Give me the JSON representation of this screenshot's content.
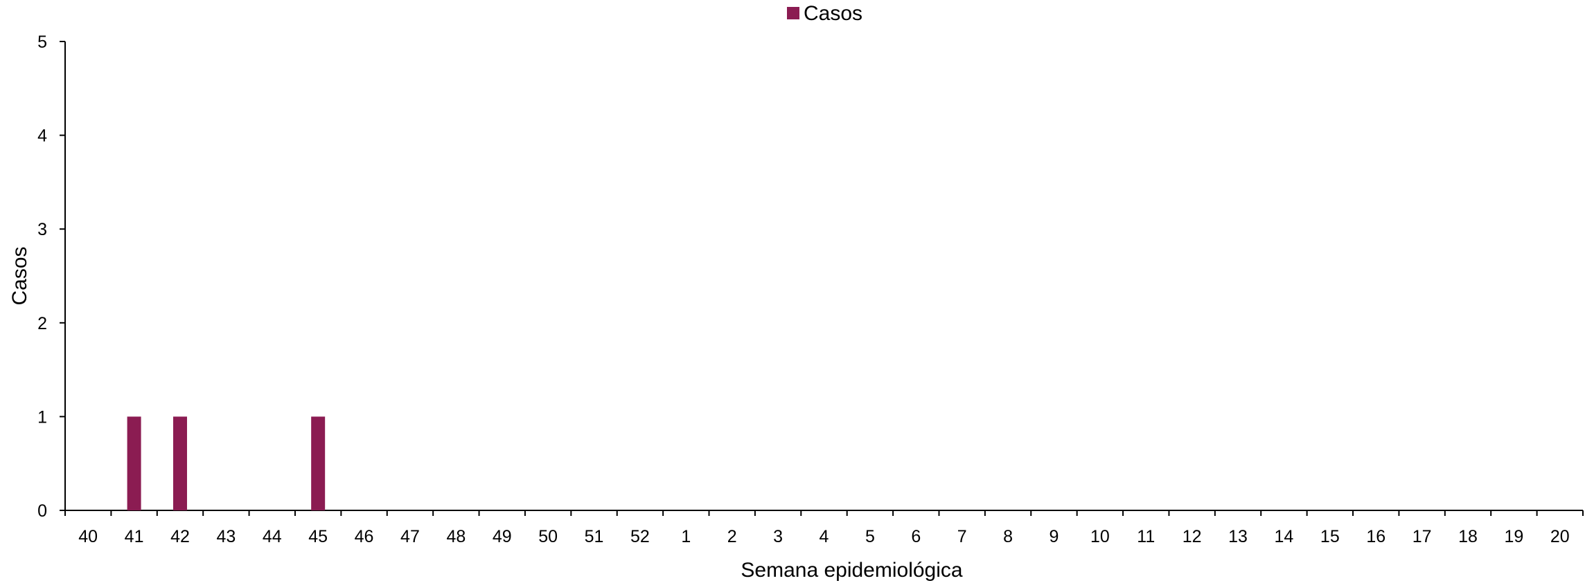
{
  "chart_data": {
    "type": "bar",
    "categories": [
      "40",
      "41",
      "42",
      "43",
      "44",
      "45",
      "46",
      "47",
      "48",
      "49",
      "50",
      "51",
      "52",
      "1",
      "2",
      "3",
      "4",
      "5",
      "6",
      "7",
      "8",
      "9",
      "10",
      "11",
      "12",
      "13",
      "14",
      "15",
      "16",
      "17",
      "18",
      "19",
      "20"
    ],
    "series": [
      {
        "name": "Casos",
        "values": [
          0,
          1,
          1,
          0,
          0,
          1,
          0,
          0,
          0,
          0,
          0,
          0,
          0,
          0,
          0,
          0,
          0,
          0,
          0,
          0,
          0,
          0,
          0,
          0,
          0,
          0,
          0,
          0,
          0,
          0,
          0,
          0,
          0
        ],
        "color": "#8b1c52"
      }
    ],
    "title": "",
    "xlabel": "Semana epidemiológica",
    "ylabel": "Casos",
    "ylim": [
      0,
      5
    ],
    "yticks": [
      "0",
      "1",
      "2",
      "3",
      "4",
      "5"
    ],
    "grid": false,
    "legend_position": "top-center"
  }
}
